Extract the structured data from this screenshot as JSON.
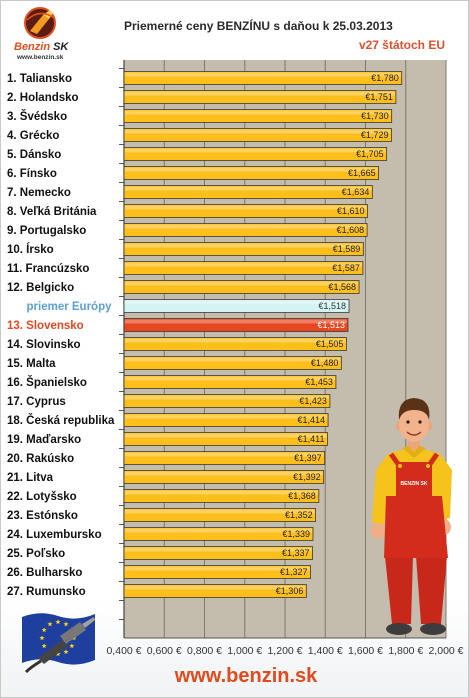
{
  "logo": {
    "brand": "Benzin",
    "country": "SK",
    "url": "www.benzin.sk",
    "icon": "fuel-nozzle-icon"
  },
  "chart_data": {
    "type": "bar",
    "orientation": "horizontal",
    "title": "Priemerné ceny BENZÍNU s daňou k 25.03.2013",
    "subtitle": "v27 štátoch EU",
    "categories": [
      "1. Taliansko",
      "2. Holandsko",
      "3. Švédsko",
      "4. Grécko",
      "5. Dánsko",
      "6. Fínsko",
      "7. Nemecko",
      "8. Veľká Británia",
      "9. Portugalsko",
      "10. Írsko",
      "11. Francúzsko",
      "12. Belgicko",
      "priemer Európy",
      "13. Slovensko",
      "14. Slovinsko",
      "15. Malta",
      "16. Španielsko",
      "17. Cyprus",
      "18. Česká republika",
      "19. Maďarsko",
      "20. Rakúsko",
      "21. Litva",
      "22. Lotyšsko",
      "23. Estónsko",
      "24. Luxembursko",
      "25. Poľsko",
      "26. Bulharsko",
      "27. Rumunsko"
    ],
    "values": [
      1.78,
      1.751,
      1.73,
      1.729,
      1.705,
      1.665,
      1.634,
      1.61,
      1.608,
      1.589,
      1.587,
      1.568,
      1.518,
      1.513,
      1.505,
      1.48,
      1.453,
      1.423,
      1.414,
      1.411,
      1.397,
      1.392,
      1.368,
      1.352,
      1.339,
      1.337,
      1.327,
      1.306
    ],
    "value_labels": [
      "€1,780",
      "€1,751",
      "€1,730",
      "€1,729",
      "€1,705",
      "€1,665",
      "€1,634",
      "€1,610",
      "€1,608",
      "€1,589",
      "€1,587",
      "€1,568",
      "€1,518",
      "€1,513",
      "€1,505",
      "€1,480",
      "€1,453",
      "€1,423",
      "€1,414",
      "€1,411",
      "€1,397",
      "€1,392",
      "€1,368",
      "€1,352",
      "€1,339",
      "€1,337",
      "€1,327",
      "€1,306"
    ],
    "xlim": [
      0.4,
      2.0
    ],
    "x_ticks": [
      0.4,
      0.6,
      0.8,
      1.0,
      1.2,
      1.4,
      1.6,
      1.8,
      2.0
    ],
    "x_tick_labels": [
      "0,400 €",
      "0,600 €",
      "0,800 €",
      "1,000 €",
      "1,200 €",
      "1,400 €",
      "1,600 €",
      "1,800 €",
      "2,000 €"
    ],
    "grid": true,
    "legend": false,
    "plot_background": "#c4bcad",
    "gridline_color": "#7e786d",
    "bar_outline": "#3a3a3a",
    "bar_colors": [
      "#ffbf1a",
      "#ffbf1a",
      "#ffbf1a",
      "#ffbf1a",
      "#ffbf1a",
      "#ffbf1a",
      "#ffbf1a",
      "#ffbf1a",
      "#ffbf1a",
      "#ffbf1a",
      "#ffbf1a",
      "#ffbf1a",
      "#d4f3f3",
      "#e8461e",
      "#ffbf1a",
      "#ffbf1a",
      "#ffbf1a",
      "#ffbf1a",
      "#ffbf1a",
      "#ffbf1a",
      "#ffbf1a",
      "#ffbf1a",
      "#ffbf1a",
      "#ffbf1a",
      "#ffbf1a",
      "#ffbf1a",
      "#ffbf1a",
      "#ffbf1a"
    ],
    "label_colors": [
      "#111111",
      "#111111",
      "#111111",
      "#111111",
      "#111111",
      "#111111",
      "#111111",
      "#111111",
      "#111111",
      "#111111",
      "#111111",
      "#111111",
      "#5a9fd6",
      "#e8461e",
      "#111111",
      "#111111",
      "#111111",
      "#111111",
      "#111111",
      "#111111",
      "#111111",
      "#111111",
      "#111111",
      "#111111",
      "#111111",
      "#111111",
      "#111111",
      "#111111"
    ],
    "value_label_colors": [
      "#222222",
      "#222222",
      "#222222",
      "#222222",
      "#222222",
      "#222222",
      "#222222",
      "#222222",
      "#222222",
      "#222222",
      "#222222",
      "#222222",
      "#333333",
      "#ffffff",
      "#222222",
      "#222222",
      "#222222",
      "#222222",
      "#222222",
      "#222222",
      "#222222",
      "#222222",
      "#222222",
      "#222222",
      "#222222",
      "#222222",
      "#222222",
      "#222222"
    ]
  },
  "illustrations": {
    "figure_icon": "mechanic-icon",
    "mechanic_badge": "BENZIN SK",
    "flag_icon": "eu-flag-icon"
  },
  "footer": {
    "url": "www.benzin.sk"
  }
}
